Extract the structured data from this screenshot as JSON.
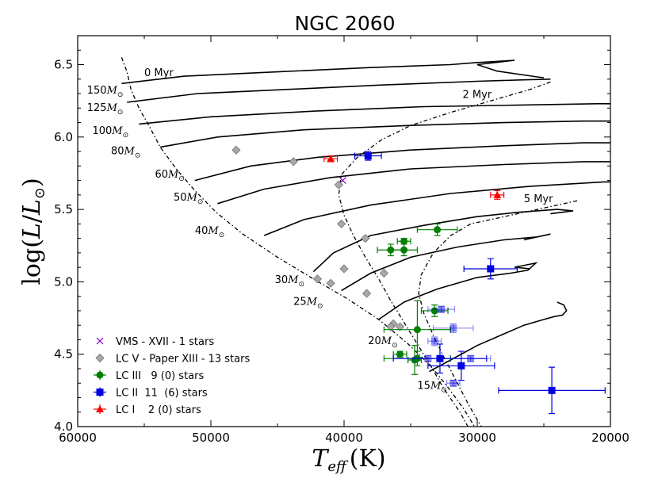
{
  "chart_data": {
    "type": "scatter",
    "title": "NGC 2060",
    "xlabel": "T_eff (K)",
    "ylabel": "log(L/L_sun)",
    "xlim": [
      60000,
      20000
    ],
    "ylim": [
      4.0,
      6.7
    ],
    "x_ticks": [
      {
        "value": 60000,
        "label": "60000"
      },
      {
        "value": 50000,
        "label": "50000"
      },
      {
        "value": 40000,
        "label": "40000"
      },
      {
        "value": 30000,
        "label": "30000"
      },
      {
        "value": 20000,
        "label": "20000"
      }
    ],
    "y_ticks": [
      {
        "value": 4.0,
        "label": "4.0"
      },
      {
        "value": 4.5,
        "label": "4.5"
      },
      {
        "value": 5.0,
        "label": "5.0"
      },
      {
        "value": 5.5,
        "label": "5.5"
      },
      {
        "value": 6.0,
        "label": "6.0"
      },
      {
        "value": 6.5,
        "label": "6.5"
      }
    ],
    "isochrones": [
      {
        "label": "0 Myr",
        "label_at": [
          55000,
          6.42
        ],
        "points": [
          [
            56700,
            6.55
          ],
          [
            56300,
            6.45
          ],
          [
            56000,
            6.33
          ],
          [
            55400,
            6.2
          ],
          [
            54600,
            6.07
          ],
          [
            53800,
            5.93
          ],
          [
            52600,
            5.78
          ],
          [
            51200,
            5.63
          ],
          [
            49600,
            5.48
          ],
          [
            47600,
            5.33
          ],
          [
            45000,
            5.17
          ],
          [
            42300,
            5.02
          ],
          [
            39700,
            4.88
          ],
          [
            37400,
            4.74
          ],
          [
            35300,
            4.58
          ],
          [
            33500,
            4.42
          ],
          [
            32100,
            4.26
          ],
          [
            31000,
            4.12
          ],
          [
            30200,
            4.0
          ]
        ]
      },
      {
        "label": "2 Myr",
        "label_at": [
          31100,
          6.27
        ],
        "points": [
          [
            24500,
            6.38
          ],
          [
            26000,
            6.33
          ],
          [
            29000,
            6.25
          ],
          [
            32000,
            6.17
          ],
          [
            35000,
            6.08
          ],
          [
            37200,
            5.98
          ],
          [
            39000,
            5.86
          ],
          [
            40200,
            5.74
          ],
          [
            40400,
            5.6
          ],
          [
            40000,
            5.46
          ],
          [
            39300,
            5.32
          ],
          [
            38400,
            5.17
          ],
          [
            37400,
            5.02
          ],
          [
            36500,
            4.87
          ],
          [
            35500,
            4.72
          ],
          [
            34500,
            4.57
          ],
          [
            33500,
            4.42
          ],
          [
            32500,
            4.26
          ],
          [
            31300,
            4.1
          ],
          [
            30700,
            4.0
          ]
        ]
      },
      {
        "label": "5 Myr",
        "label_at": [
          26500,
          5.55
        ],
        "points": [
          [
            22500,
            5.56
          ],
          [
            24500,
            5.52
          ],
          [
            26500,
            5.48
          ],
          [
            28500,
            5.44
          ],
          [
            30500,
            5.4
          ],
          [
            32000,
            5.32
          ],
          [
            33300,
            5.2
          ],
          [
            34200,
            5.05
          ],
          [
            34400,
            4.92
          ],
          [
            34000,
            4.78
          ],
          [
            33300,
            4.63
          ],
          [
            32500,
            4.48
          ],
          [
            31600,
            4.32
          ],
          [
            30700,
            4.16
          ],
          [
            29700,
            4.0
          ]
        ]
      }
    ],
    "tracks": [
      {
        "label": "150",
        "label_at": [
          59300,
          6.3
        ],
        "points": [
          [
            56700,
            6.37
          ],
          [
            52000,
            6.42
          ],
          [
            45000,
            6.45
          ],
          [
            38000,
            6.48
          ],
          [
            32000,
            6.5
          ],
          [
            30000,
            6.515
          ],
          [
            29000,
            6.52
          ],
          [
            27200,
            6.53
          ],
          [
            30000,
            6.5
          ],
          [
            28500,
            6.455
          ],
          [
            25500,
            6.415
          ],
          [
            25000,
            6.41
          ]
        ]
      },
      {
        "label": "125",
        "label_at": [
          59300,
          6.18
        ],
        "points": [
          [
            56300,
            6.24
          ],
          [
            51000,
            6.3
          ],
          [
            44000,
            6.33
          ],
          [
            37000,
            6.36
          ],
          [
            30000,
            6.385
          ],
          [
            26500,
            6.395
          ],
          [
            24500,
            6.4
          ]
        ]
      },
      {
        "label": "100",
        "label_at": [
          58900,
          6.02
        ],
        "points": [
          [
            55400,
            6.09
          ],
          [
            50000,
            6.14
          ],
          [
            42000,
            6.18
          ],
          [
            34000,
            6.21
          ],
          [
            27000,
            6.22
          ],
          [
            21000,
            6.23
          ],
          [
            20000,
            6.23
          ]
        ]
      },
      {
        "label": "80",
        "label_at": [
          57500,
          5.88
        ],
        "points": [
          [
            53800,
            5.93
          ],
          [
            49500,
            6.0
          ],
          [
            43000,
            6.05
          ],
          [
            35000,
            6.08
          ],
          [
            28000,
            6.1
          ],
          [
            22000,
            6.11
          ],
          [
            20000,
            6.11
          ]
        ]
      },
      {
        "label": "60",
        "label_at": [
          54200,
          5.72
        ],
        "points": [
          [
            51200,
            5.7
          ],
          [
            47000,
            5.8
          ],
          [
            42000,
            5.86
          ],
          [
            35000,
            5.91
          ],
          [
            28000,
            5.94
          ],
          [
            22000,
            5.96
          ],
          [
            20000,
            5.96
          ]
        ]
      },
      {
        "label": "50",
        "label_at": [
          52800,
          5.56
        ],
        "points": [
          [
            49500,
            5.54
          ],
          [
            46000,
            5.64
          ],
          [
            41000,
            5.72
          ],
          [
            35000,
            5.78
          ],
          [
            28000,
            5.81
          ],
          [
            22000,
            5.83
          ],
          [
            20000,
            5.83
          ]
        ]
      },
      {
        "label": "40",
        "label_at": [
          51200,
          5.33
        ],
        "points": [
          [
            46000,
            5.32
          ],
          [
            43000,
            5.43
          ],
          [
            38000,
            5.53
          ],
          [
            32000,
            5.61
          ],
          [
            26000,
            5.66
          ],
          [
            20500,
            5.69
          ],
          [
            20000,
            5.69
          ]
        ]
      },
      {
        "label": "30",
        "label_at": [
          45200,
          4.99
        ],
        "points": [
          [
            42300,
            5.07
          ],
          [
            40800,
            5.2
          ],
          [
            38000,
            5.32
          ],
          [
            34000,
            5.39
          ],
          [
            30000,
            5.45
          ],
          [
            27000,
            5.48
          ],
          [
            24000,
            5.5
          ],
          [
            22800,
            5.49
          ],
          [
            24500,
            5.47
          ]
        ]
      },
      {
        "label": "25",
        "label_at": [
          43800,
          4.84
        ],
        "points": [
          [
            40200,
            4.94
          ],
          [
            38000,
            5.06
          ],
          [
            35000,
            5.17
          ],
          [
            31500,
            5.24
          ],
          [
            28000,
            5.29
          ],
          [
            25500,
            5.31
          ],
          [
            24500,
            5.33
          ],
          [
            26500,
            5.29
          ]
        ]
      },
      {
        "label": "20",
        "label_at": [
          38200,
          4.57
        ],
        "points": [
          [
            37400,
            4.74
          ],
          [
            35500,
            4.86
          ],
          [
            33000,
            4.95
          ],
          [
            30000,
            5.03
          ],
          [
            27500,
            5.06
          ],
          [
            26200,
            5.08
          ],
          [
            25600,
            5.13
          ],
          [
            27200,
            5.1
          ],
          [
            26000,
            5.09
          ]
        ]
      },
      {
        "label": "15",
        "label_at": [
          34500,
          4.26
        ],
        "points": [
          [
            33600,
            4.38
          ],
          [
            32000,
            4.46
          ],
          [
            30000,
            4.56
          ],
          [
            28000,
            4.64
          ],
          [
            26500,
            4.7
          ],
          [
            25000,
            4.74
          ],
          [
            24200,
            4.76
          ],
          [
            23600,
            4.77
          ],
          [
            23300,
            4.8
          ],
          [
            23500,
            4.84
          ],
          [
            24000,
            4.86
          ]
        ]
      }
    ],
    "series": [
      {
        "name": "VMS - XVII - 1 stars",
        "marker": "x",
        "color": "#8b00c8",
        "points": [
          {
            "x": 40100,
            "y": 5.7
          }
        ]
      },
      {
        "name": "LC V - Paper XIII - 13 stars",
        "marker": "diamond",
        "color": "#a8a8a8",
        "points": [
          {
            "x": 48100,
            "y": 5.91
          },
          {
            "x": 43800,
            "y": 5.83
          },
          {
            "x": 40400,
            "y": 5.67
          },
          {
            "x": 40200,
            "y": 5.4
          },
          {
            "x": 38400,
            "y": 5.3
          },
          {
            "x": 37000,
            "y": 5.06
          },
          {
            "x": 40000,
            "y": 5.09
          },
          {
            "x": 41000,
            "y": 4.99
          },
          {
            "x": 42000,
            "y": 5.02
          },
          {
            "x": 38300,
            "y": 4.92
          },
          {
            "x": 36300,
            "y": 4.71
          },
          {
            "x": 35800,
            "y": 4.69
          },
          {
            "x": 36500,
            "y": 4.69
          }
        ]
      },
      {
        "name": "LC III   9 (0) stars",
        "marker": "circle",
        "color": "#008000",
        "points": [
          {
            "x": 33000,
            "y": 5.36,
            "xerr": 1500,
            "yerr": 0.04
          },
          {
            "x": 35500,
            "y": 5.28,
            "xerr": 500,
            "yerr": 0.02
          },
          {
            "x": 36500,
            "y": 5.22,
            "xerr": 1000,
            "yerr": 0.04
          },
          {
            "x": 35500,
            "y": 5.22,
            "xerr": 1000,
            "yerr": 0.04
          },
          {
            "x": 33200,
            "y": 4.8,
            "xerr": 1000,
            "yerr": 0.04
          },
          {
            "x": 34500,
            "y": 4.67,
            "xerr": 2500,
            "yerr": 0.2
          },
          {
            "x": 35800,
            "y": 4.5,
            "xerr": 500,
            "yerr": 0.02
          },
          {
            "x": 34500,
            "y": 4.47,
            "xerr": 2500,
            "yerr": 0.05
          },
          {
            "x": 34700,
            "y": 4.46,
            "xerr": 500,
            "yerr": 0.1
          }
        ]
      },
      {
        "name": "LC II  11  (6) stars",
        "marker": "square",
        "color": "#0000e0",
        "points": [
          {
            "x": 38200,
            "y": 5.87,
            "xerr": 1000,
            "yerr": 0.03
          },
          {
            "x": 29000,
            "y": 5.09,
            "xerr": 2000,
            "yerr": 0.07
          },
          {
            "x": 32800,
            "y": 4.47,
            "xerr": 3500,
            "yerr": 0.1
          },
          {
            "x": 31200,
            "y": 4.42,
            "xerr": 2500,
            "yerr": 0.1
          },
          {
            "x": 24400,
            "y": 4.25,
            "xerr": 4000,
            "yerr": 0.16
          },
          {
            "x": 32700,
            "y": 4.81,
            "xerr": 1000,
            "yerr": 0.02,
            "faded": true
          },
          {
            "x": 31800,
            "y": 4.68,
            "xerr": 1500,
            "yerr": 0.03,
            "faded": true
          },
          {
            "x": 33200,
            "y": 4.59,
            "xerr": 500,
            "yerr": 0.03,
            "faded": true
          },
          {
            "x": 30500,
            "y": 4.47,
            "xerr": 1500,
            "yerr": 0.02,
            "faded": true
          },
          {
            "x": 33700,
            "y": 4.47,
            "xerr": 1000,
            "yerr": 0.02,
            "faded": true
          },
          {
            "x": 31800,
            "y": 4.3,
            "xerr": 500,
            "yerr": 0.02,
            "faded": true
          }
        ]
      },
      {
        "name": "LC I    2 (0) stars",
        "marker": "triangle",
        "color": "#ff0000",
        "points": [
          {
            "x": 41000,
            "y": 5.85,
            "xerr": 500,
            "yerr": 0.02
          },
          {
            "x": 28500,
            "y": 5.6,
            "xerr": 500,
            "yerr": 0.03
          }
        ]
      }
    ],
    "legend": "lower-left",
    "mass_unit": "M",
    "mass_unit_sub": "⊙",
    "ylabel_parts": {
      "pre": "log",
      "paren_open": "(",
      "L1": "L",
      "slash": "/",
      "L2": "L",
      "sun": "⊙",
      "paren_close": ")"
    },
    "xlabel_parts": {
      "T": "T",
      "sub": "eff",
      "unit": "(K)"
    }
  }
}
